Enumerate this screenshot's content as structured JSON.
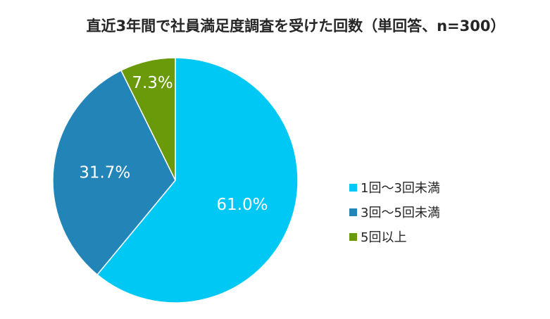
{
  "chart_data": {
    "type": "pie",
    "title": "直近3年間で社員満足度調査を受けた回数（単回答、n=300）",
    "unit": "%",
    "legend_position": "right",
    "slices": [
      {
        "label": "1回～3回未満",
        "value": 61.0,
        "display": "61.0%",
        "color": "#00C8F5"
      },
      {
        "label": "3回～5回未満",
        "value": 31.7,
        "display": "31.7%",
        "color": "#2384B8"
      },
      {
        "label": "5回以上",
        "value": 7.3,
        "display": "7.3%",
        "color": "#6A9A0A"
      }
    ]
  }
}
